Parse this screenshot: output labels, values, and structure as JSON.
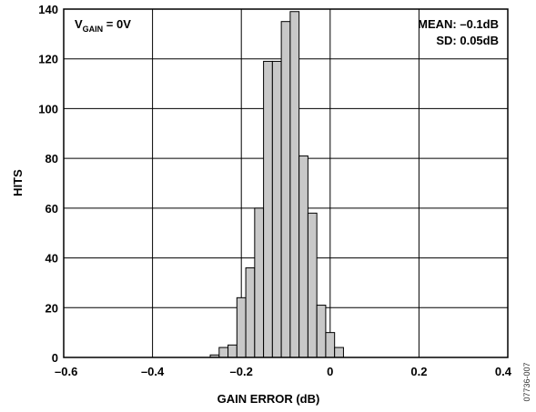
{
  "chart_data": {
    "type": "bar",
    "subtype": "histogram",
    "xlabel": "GAIN ERROR (dB)",
    "ylabel": "HITS",
    "xlim": [
      -0.6,
      0.4
    ],
    "ylim": [
      0,
      140
    ],
    "xticks": [
      "–0.6",
      "–0.4",
      "–0.2",
      "0",
      "0.2",
      "0.4"
    ],
    "yticks": [
      "0",
      "20",
      "40",
      "60",
      "80",
      "100",
      "120",
      "140"
    ],
    "grid": true,
    "bin_width": 0.02,
    "bins": [
      {
        "x0": -0.27,
        "x1": -0.25,
        "value": 1
      },
      {
        "x0": -0.25,
        "x1": -0.23,
        "value": 4
      },
      {
        "x0": -0.23,
        "x1": -0.21,
        "value": 5
      },
      {
        "x0": -0.21,
        "x1": -0.19,
        "value": 24
      },
      {
        "x0": -0.19,
        "x1": -0.17,
        "value": 36
      },
      {
        "x0": -0.17,
        "x1": -0.15,
        "value": 60
      },
      {
        "x0": -0.15,
        "x1": -0.13,
        "value": 119
      },
      {
        "x0": -0.13,
        "x1": -0.11,
        "value": 119
      },
      {
        "x0": -0.11,
        "x1": -0.09,
        "value": 135
      },
      {
        "x0": -0.09,
        "x1": -0.07,
        "value": 139
      },
      {
        "x0": -0.07,
        "x1": -0.05,
        "value": 81
      },
      {
        "x0": -0.05,
        "x1": -0.03,
        "value": 58
      },
      {
        "x0": -0.03,
        "x1": -0.01,
        "value": 21
      },
      {
        "x0": -0.01,
        "x1": 0.01,
        "value": 10
      },
      {
        "x0": 0.01,
        "x1": 0.03,
        "value": 4
      }
    ],
    "annotation_left": {
      "prefix": "V",
      "subscript": "GAIN",
      "suffix": " = 0V"
    },
    "annotation_right": [
      "MEAN: –0.1dB",
      "SD: 0.05dB"
    ],
    "figure_code": "07736-007"
  }
}
